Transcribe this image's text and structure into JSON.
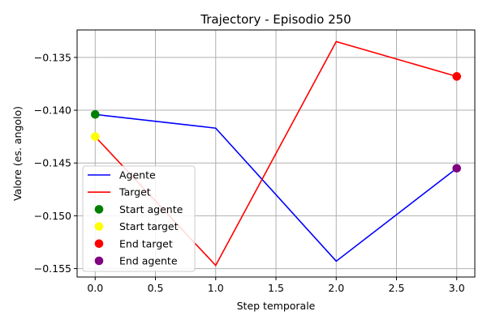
{
  "chart_data": {
    "type": "line",
    "title": "Trajectory - Episodio 250",
    "xlabel": "Step temporale",
    "ylabel": "Valore (es. angolo)",
    "xlim": [
      -0.15,
      3.15
    ],
    "ylim": [
      -0.1558,
      -0.1324
    ],
    "xticks": [
      0.0,
      0.5,
      1.0,
      1.5,
      2.0,
      2.5,
      3.0
    ],
    "xtick_labels": [
      "0.0",
      "0.5",
      "1.0",
      "1.5",
      "2.0",
      "2.5",
      "3.0"
    ],
    "yticks": [
      -0.155,
      -0.15,
      -0.145,
      -0.14,
      -0.135
    ],
    "ytick_labels": [
      "−0.155",
      "−0.150",
      "−0.145",
      "−0.140",
      "−0.135"
    ],
    "grid": true,
    "legend_position": "lower-left",
    "x": [
      0,
      1,
      2,
      3
    ],
    "series": [
      {
        "name": "Agente",
        "color": "#0000ff",
        "values": [
          -0.1404,
          -0.1417,
          -0.1543,
          -0.1455
        ]
      },
      {
        "name": "Target",
        "color": "#ff0000",
        "values": [
          -0.1425,
          -0.1547,
          -0.1335,
          -0.1368
        ]
      }
    ],
    "markers": [
      {
        "name": "Start agente",
        "color": "#008000",
        "x": 0,
        "y": -0.1404
      },
      {
        "name": "Start target",
        "color": "#ffff00",
        "x": 0,
        "y": -0.1425
      },
      {
        "name": "End target",
        "color": "#ff0000",
        "x": 3,
        "y": -0.1368
      },
      {
        "name": "End agente",
        "color": "#800080",
        "x": 3,
        "y": -0.1455
      }
    ]
  }
}
